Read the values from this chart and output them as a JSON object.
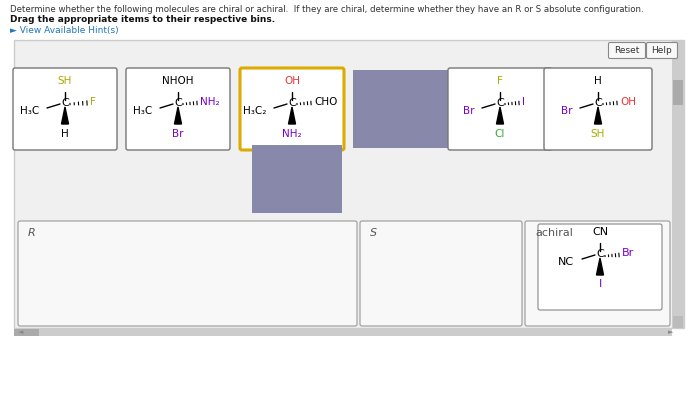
{
  "title_line1": "Determine whether the following molecules are chiral or achiral.  If they are chiral, determine whether they have an R or S absolute configuration.",
  "title_line2": "Drag the appropriate items to their respective bins.",
  "hint_text": "► View Available Hint(s)",
  "sh_color": "#aaaa00",
  "f_color": "#aaaa00",
  "nh2_color": "#7700cc",
  "br_color": "#7700cc",
  "oh_color": "#ee3333",
  "cl_color": "#33aa33",
  "i_color": "#7700cc",
  "gray_color": "#8888aa"
}
